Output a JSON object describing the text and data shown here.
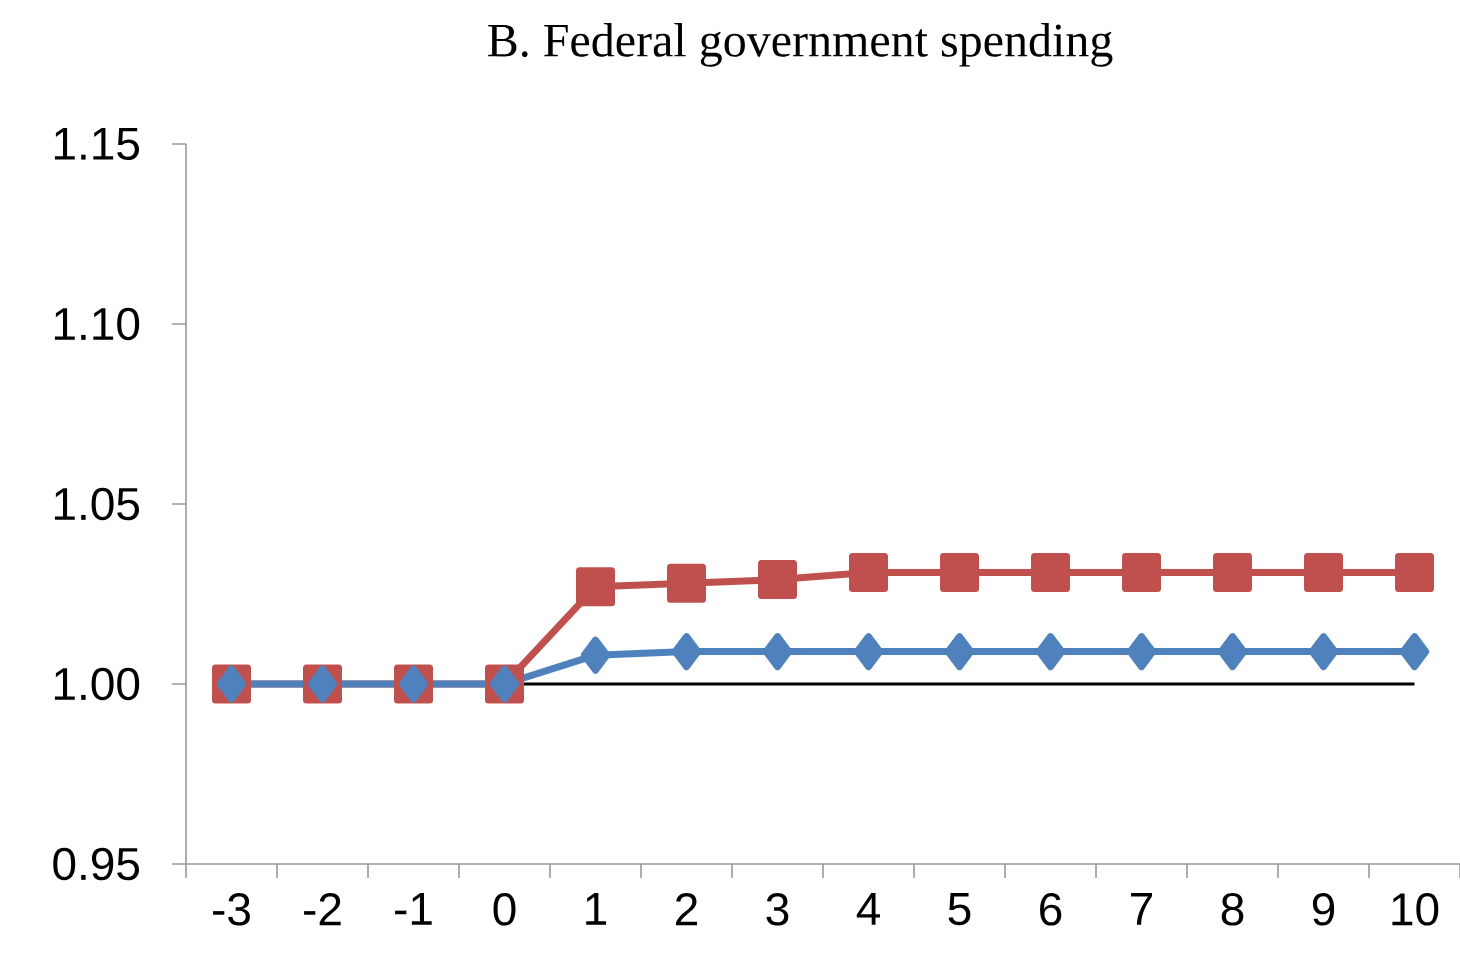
{
  "chart_data": {
    "type": "line",
    "title": "B. Federal government spending",
    "categories": [
      "-3",
      "-2",
      "-1",
      "0",
      "1",
      "2",
      "3",
      "4",
      "5",
      "6",
      "7",
      "8",
      "9",
      "10"
    ],
    "series": [
      {
        "color": "#c0504d",
        "marker": "square",
        "values": [
          1.0,
          1.0,
          1.0,
          1.0,
          1.027,
          1.028,
          1.029,
          1.031,
          1.031,
          1.031,
          1.031,
          1.031,
          1.031,
          1.031
        ]
      },
      {
        "color": "#4f81bd",
        "marker": "diamond",
        "values": [
          1.0,
          1.0,
          1.0,
          1.0,
          1.008,
          1.009,
          1.009,
          1.009,
          1.009,
          1.009,
          1.009,
          1.009,
          1.009,
          1.009
        ]
      }
    ],
    "ylim": [
      0.95,
      1.15
    ],
    "yticks": [
      0.95,
      {
        "value": 1.0,
        "label": "1.00"
      },
      {
        "value": 1.05,
        "label": "1.05"
      },
      {
        "value": 1.1,
        "label": "1.10"
      },
      1.15
    ],
    "ref_lines": [
      {
        "axis": "y",
        "value": 1.0,
        "color": "#000000"
      }
    ],
    "grid": false,
    "line_style": "solid"
  }
}
